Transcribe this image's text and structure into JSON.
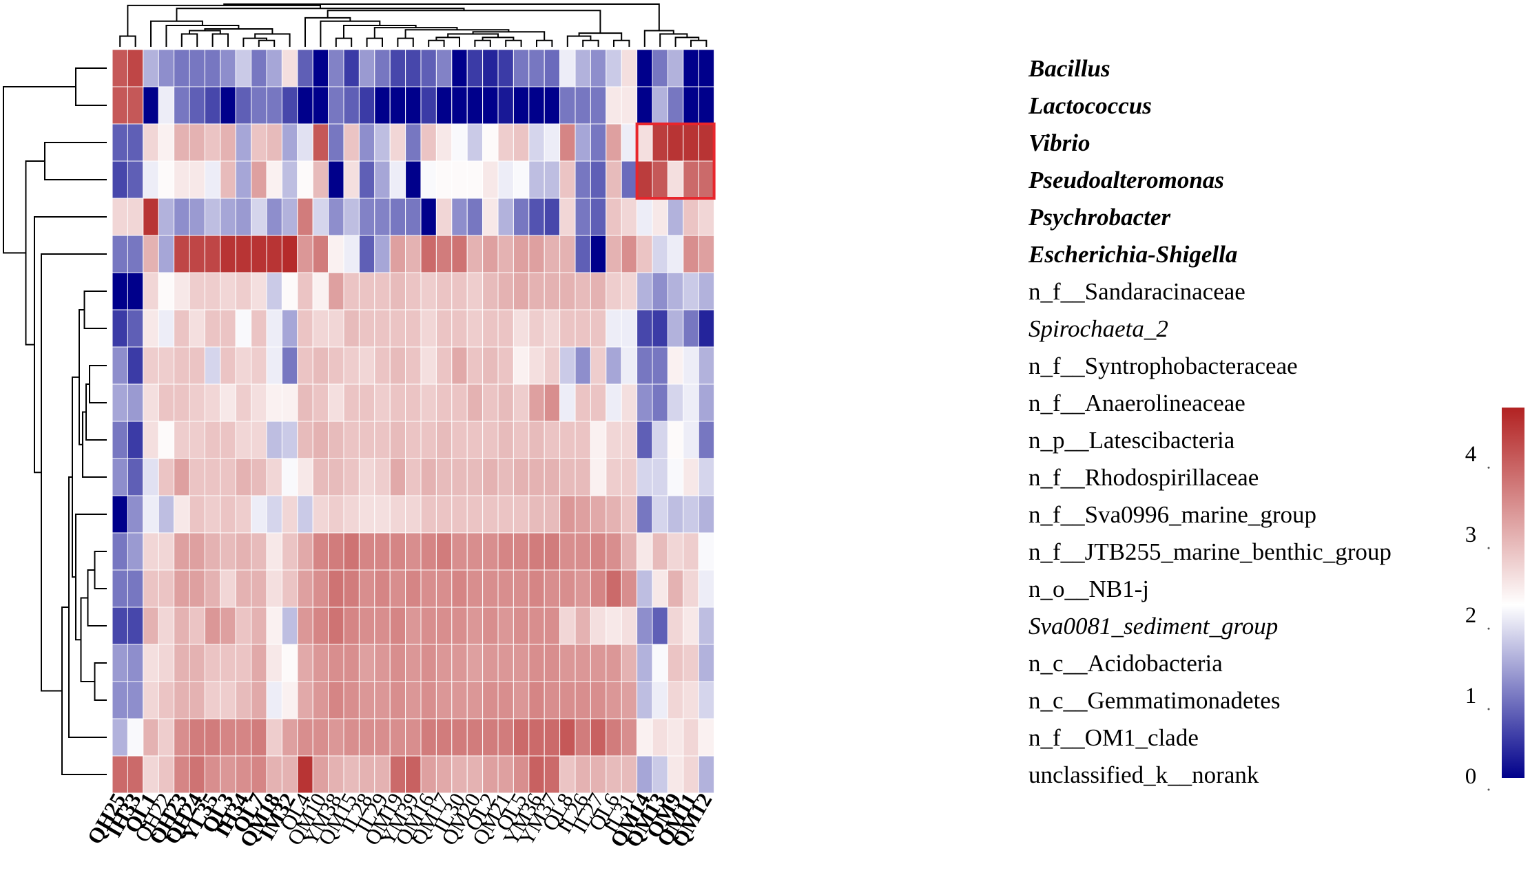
{
  "chart_data": {
    "type": "heatmap",
    "title": "",
    "rows": [
      {
        "label": "Bacillus",
        "style": "bold-italic"
      },
      {
        "label": "Lactococcus",
        "style": "bold-italic"
      },
      {
        "label": "Vibrio",
        "style": "bold-italic"
      },
      {
        "label": "Pseudoalteromonas",
        "style": "bold-italic"
      },
      {
        "label": "Psychrobacter",
        "style": "bold-italic"
      },
      {
        "label": "Escherichia-Shigella",
        "style": "bold-italic"
      },
      {
        "label": "n_f__Sandaracinaceae",
        "style": "normal"
      },
      {
        "label": "Spirochaeta_2",
        "style": "italic"
      },
      {
        "label": "n_f__Syntrophobacteraceae",
        "style": "normal"
      },
      {
        "label": "n_f__Anaerolineaceae",
        "style": "normal"
      },
      {
        "label": "n_p__Latescibacteria",
        "style": "normal"
      },
      {
        "label": "n_f__Rhodospirillaceae",
        "style": "normal"
      },
      {
        "label": "n_f__Sva0996_marine_group",
        "style": "normal"
      },
      {
        "label": "n_f__JTB255_marine_benthic_group",
        "style": "normal"
      },
      {
        "label": "n_o__NB1-j",
        "style": "normal"
      },
      {
        "label": "Sva0081_sediment_group",
        "style": "italic"
      },
      {
        "label": "n_c__Acidobacteria",
        "style": "normal"
      },
      {
        "label": "n_c__Gemmatimonadetes",
        "style": "normal"
      },
      {
        "label": "n_f__OM1_clade",
        "style": "normal"
      },
      {
        "label": "unclassified_k__norank",
        "style": "normal"
      }
    ],
    "columns": [
      {
        "label": "QH25",
        "bold": true
      },
      {
        "label": "IH33",
        "bold": true
      },
      {
        "label": "QL1",
        "bold": true
      },
      {
        "label": "QH22",
        "bold": false
      },
      {
        "label": "QH23",
        "bold": true
      },
      {
        "label": "QH24",
        "bold": true
      },
      {
        "label": "YL35",
        "bold": true
      },
      {
        "label": "QL3",
        "bold": true
      },
      {
        "label": "IH34",
        "bold": true
      },
      {
        "label": "QL7",
        "bold": true
      },
      {
        "label": "QM18",
        "bold": true
      },
      {
        "label": "IM32",
        "bold": true
      },
      {
        "label": "QL4",
        "bold": false
      },
      {
        "label": "QM10",
        "bold": false
      },
      {
        "label": "YM38",
        "bold": false
      },
      {
        "label": "QM15",
        "bold": false
      },
      {
        "label": "IL28",
        "bold": false
      },
      {
        "label": "IL29",
        "bold": false
      },
      {
        "label": "QM19",
        "bold": false
      },
      {
        "label": "YM39",
        "bold": false
      },
      {
        "label": "QM16",
        "bold": false
      },
      {
        "label": "QM17",
        "bold": false
      },
      {
        "label": "IL30",
        "bold": false
      },
      {
        "label": "QM20",
        "bold": false
      },
      {
        "label": "QL2",
        "bold": false
      },
      {
        "label": "QM21",
        "bold": false
      },
      {
        "label": "QL5",
        "bold": false
      },
      {
        "label": "YM36",
        "bold": false
      },
      {
        "label": "YM37",
        "bold": false
      },
      {
        "label": "QL8",
        "bold": false
      },
      {
        "label": "IL26",
        "bold": false
      },
      {
        "label": "IL27",
        "bold": false
      },
      {
        "label": "QL6",
        "bold": false
      },
      {
        "label": "IL31",
        "bold": false
      },
      {
        "label": "QM14",
        "bold": true
      },
      {
        "label": "QM13",
        "bold": true
      },
      {
        "label": "QM9",
        "bold": true
      },
      {
        "label": "QM11",
        "bold": true
      },
      {
        "label": "QM12",
        "bold": true
      }
    ],
    "values": [
      [
        4.0,
        4.2,
        1.5,
        1.2,
        1.0,
        1.0,
        1.0,
        1.2,
        1.7,
        1.0,
        1.4,
        2.5,
        0.8,
        0.0,
        1.1,
        0.5,
        1.3,
        1.0,
        0.6,
        0.6,
        0.8,
        1.1,
        0.0,
        0.5,
        0.3,
        0.5,
        1.0,
        1.0,
        0.9,
        2.0,
        1.5,
        1.2,
        1.7,
        2.5,
        0.0,
        1.0,
        1.5,
        0.0,
        0.0
      ],
      [
        4.0,
        4.0,
        0.0,
        2.0,
        1.0,
        0.8,
        0.6,
        0.0,
        0.8,
        1.0,
        1.0,
        0.6,
        0.0,
        0.0,
        1.0,
        0.8,
        0.5,
        0.0,
        0.0,
        0.0,
        0.5,
        0.0,
        0.0,
        0.0,
        0.0,
        0.2,
        0.0,
        0.0,
        0.0,
        1.0,
        1.0,
        1.0,
        2.4,
        2.4,
        0.0,
        1.5,
        1.0,
        0.0,
        0.0
      ],
      [
        0.8,
        0.8,
        2.6,
        2.3,
        3.0,
        3.0,
        2.8,
        3.0,
        1.4,
        2.8,
        2.9,
        1.4,
        1.9,
        4.0,
        1.0,
        2.8,
        1.2,
        1.6,
        2.6,
        1.0,
        2.8,
        2.4,
        2.1,
        1.7,
        2.2,
        2.7,
        2.8,
        1.8,
        2.0,
        3.5,
        1.4,
        1.0,
        3.2,
        2.0,
        2.5,
        4.3,
        4.4,
        4.4,
        4.4
      ],
      [
        0.6,
        0.8,
        2.0,
        2.2,
        2.4,
        2.4,
        2.0,
        2.9,
        1.4,
        3.2,
        2.3,
        1.6,
        2.2,
        2.9,
        0.0,
        2.5,
        0.8,
        1.4,
        2.0,
        0.0,
        2.1,
        2.2,
        2.2,
        2.2,
        2.4,
        2.0,
        2.1,
        1.6,
        1.6,
        2.8,
        1.0,
        0.8,
        2.9,
        0.9,
        4.3,
        4.0,
        2.5,
        3.8,
        3.8
      ],
      [
        2.6,
        2.6,
        4.4,
        1.5,
        1.2,
        1.3,
        1.6,
        1.4,
        1.3,
        1.8,
        1.2,
        1.5,
        3.6,
        1.8,
        1.2,
        1.6,
        1.1,
        1.1,
        1.0,
        1.0,
        0.0,
        2.6,
        1.2,
        1.0,
        2.4,
        1.5,
        1.0,
        0.7,
        0.6,
        2.6,
        1.0,
        0.8,
        2.8,
        2.6,
        2.0,
        2.4,
        1.5,
        2.8,
        2.6
      ],
      [
        1.0,
        1.0,
        3.0,
        1.4,
        4.2,
        4.2,
        4.2,
        4.4,
        4.4,
        4.4,
        4.4,
        4.5,
        3.3,
        3.6,
        2.3,
        2.0,
        0.8,
        1.4,
        3.2,
        3.0,
        3.8,
        3.6,
        3.7,
        3.0,
        3.2,
        3.0,
        3.2,
        3.2,
        3.0,
        3.0,
        0.8,
        0.0,
        3.0,
        3.4,
        2.8,
        1.8,
        2.0,
        3.4,
        3.2
      ],
      [
        0.0,
        0.0,
        2.6,
        2.2,
        2.4,
        2.7,
        2.7,
        2.6,
        2.7,
        2.5,
        1.7,
        2.2,
        2.8,
        2.3,
        3.2,
        2.8,
        2.8,
        2.8,
        2.9,
        2.8,
        2.7,
        2.8,
        2.8,
        2.7,
        2.9,
        3.0,
        3.1,
        3.0,
        3.0,
        3.0,
        2.9,
        3.0,
        2.7,
        2.6,
        1.5,
        1.2,
        1.5,
        1.7,
        1.5
      ],
      [
        0.5,
        0.8,
        2.4,
        2.0,
        2.8,
        2.5,
        2.8,
        2.8,
        2.1,
        2.8,
        2.0,
        1.4,
        2.8,
        2.6,
        2.6,
        2.9,
        2.8,
        2.8,
        2.8,
        2.8,
        2.6,
        2.8,
        2.8,
        2.7,
        2.8,
        2.8,
        2.5,
        2.7,
        2.6,
        2.8,
        2.8,
        2.8,
        2.0,
        2.0,
        0.6,
        0.5,
        1.5,
        1.0,
        0.3
      ],
      [
        1.2,
        0.5,
        2.7,
        2.7,
        2.8,
        2.8,
        1.8,
        2.8,
        2.6,
        2.7,
        2.0,
        1.0,
        2.8,
        2.9,
        2.8,
        2.7,
        2.6,
        2.8,
        2.9,
        2.8,
        2.5,
        2.8,
        3.1,
        2.8,
        2.9,
        2.8,
        2.3,
        2.5,
        2.7,
        1.7,
        1.2,
        2.7,
        1.4,
        2.0,
        1.0,
        1.0,
        2.3,
        2.0,
        1.5
      ],
      [
        1.4,
        1.3,
        2.5,
        2.8,
        2.8,
        2.7,
        2.6,
        2.4,
        2.7,
        2.5,
        2.3,
        2.3,
        2.9,
        2.8,
        2.5,
        2.8,
        2.8,
        2.7,
        2.8,
        2.8,
        2.7,
        2.8,
        2.8,
        3.0,
        2.8,
        2.9,
        2.7,
        3.2,
        3.4,
        2.0,
        2.8,
        2.8,
        2.0,
        2.5,
        1.2,
        1.0,
        1.8,
        2.0,
        1.4
      ],
      [
        1.0,
        0.5,
        2.5,
        2.2,
        2.7,
        2.7,
        2.8,
        2.8,
        2.6,
        2.6,
        1.6,
        1.7,
        2.9,
        3.0,
        2.9,
        2.8,
        2.8,
        2.8,
        2.9,
        2.8,
        2.8,
        2.9,
        2.8,
        2.8,
        2.8,
        2.9,
        2.8,
        2.9,
        2.8,
        2.8,
        2.8,
        2.3,
        2.6,
        2.6,
        0.8,
        1.8,
        2.2,
        2.0,
        1.0
      ],
      [
        1.2,
        0.8,
        1.9,
        2.8,
        3.2,
        2.8,
        2.8,
        2.8,
        3.0,
        2.9,
        2.6,
        2.1,
        2.4,
        2.9,
        2.9,
        2.8,
        2.6,
        2.7,
        3.1,
        2.8,
        3.0,
        2.9,
        2.9,
        2.9,
        3.0,
        2.9,
        3.0,
        3.0,
        3.0,
        2.9,
        2.9,
        2.3,
        2.7,
        2.7,
        1.8,
        1.8,
        2.1,
        2.4,
        1.8
      ],
      [
        0.0,
        1.2,
        2.0,
        1.6,
        2.4,
        2.8,
        2.7,
        2.8,
        2.7,
        2.0,
        1.8,
        2.6,
        1.7,
        2.6,
        2.7,
        2.6,
        2.5,
        2.5,
        2.6,
        2.6,
        2.8,
        2.8,
        2.8,
        2.8,
        2.8,
        2.8,
        2.8,
        2.9,
        2.9,
        3.3,
        3.2,
        3.1,
        3.0,
        2.8,
        1.0,
        1.8,
        1.6,
        1.7,
        1.5
      ],
      [
        1.0,
        1.3,
        2.6,
        2.6,
        3.2,
        3.2,
        3.0,
        2.9,
        3.0,
        2.9,
        2.4,
        2.8,
        3.1,
        3.5,
        3.6,
        3.7,
        3.5,
        3.5,
        3.5,
        3.4,
        3.5,
        3.6,
        3.4,
        3.4,
        3.4,
        3.5,
        3.5,
        3.6,
        3.6,
        3.4,
        3.4,
        3.5,
        3.4,
        3.0,
        2.4,
        2.9,
        2.6,
        2.7,
        2.1
      ],
      [
        1.0,
        1.0,
        2.8,
        2.8,
        3.2,
        3.2,
        3.0,
        2.6,
        3.0,
        3.0,
        2.5,
        2.8,
        3.2,
        3.4,
        3.7,
        3.6,
        3.4,
        3.5,
        3.4,
        3.5,
        3.4,
        3.4,
        3.5,
        3.4,
        3.4,
        3.4,
        3.4,
        3.5,
        3.4,
        3.4,
        3.3,
        3.5,
        3.8,
        3.4,
        1.6,
        2.4,
        3.0,
        2.6,
        2.0
      ],
      [
        0.6,
        0.6,
        3.0,
        2.6,
        3.0,
        2.8,
        3.3,
        3.2,
        2.8,
        3.0,
        2.3,
        1.6,
        3.3,
        3.5,
        3.7,
        3.5,
        3.4,
        3.4,
        3.5,
        3.3,
        3.4,
        3.4,
        3.4,
        3.3,
        3.4,
        3.3,
        3.4,
        3.4,
        3.4,
        2.6,
        3.0,
        2.5,
        2.4,
        2.5,
        1.2,
        0.8,
        2.6,
        2.4,
        1.6
      ],
      [
        1.3,
        1.2,
        2.5,
        2.6,
        3.0,
        3.0,
        2.8,
        2.8,
        2.8,
        3.1,
        2.4,
        2.2,
        3.1,
        3.3,
        3.4,
        3.4,
        3.2,
        3.3,
        3.4,
        3.3,
        3.4,
        3.3,
        3.3,
        3.2,
        3.3,
        3.3,
        3.3,
        3.4,
        3.4,
        3.3,
        3.3,
        3.3,
        3.3,
        3.0,
        1.5,
        2.1,
        2.8,
        2.7,
        1.5
      ],
      [
        1.2,
        1.2,
        2.6,
        2.8,
        3.0,
        3.0,
        2.7,
        2.7,
        2.9,
        3.1,
        2.0,
        2.3,
        3.1,
        3.3,
        3.5,
        3.4,
        3.3,
        3.3,
        3.4,
        3.3,
        3.4,
        3.3,
        3.3,
        3.3,
        3.4,
        3.4,
        3.3,
        3.5,
        3.4,
        3.4,
        3.4,
        3.4,
        3.3,
        3.2,
        1.6,
        2.0,
        2.6,
        2.5,
        1.8
      ],
      [
        1.5,
        2.1,
        3.0,
        2.7,
        3.4,
        3.6,
        3.6,
        3.5,
        3.5,
        3.6,
        2.7,
        3.2,
        3.4,
        3.4,
        3.3,
        3.4,
        3.4,
        3.4,
        3.4,
        3.4,
        3.6,
        3.6,
        3.6,
        3.6,
        3.6,
        3.6,
        3.8,
        3.8,
        3.8,
        4.0,
        3.6,
        3.9,
        3.6,
        3.4,
        2.3,
        2.5,
        2.4,
        2.6,
        2.3
      ],
      [
        3.8,
        3.8,
        2.6,
        2.8,
        3.5,
        3.7,
        3.4,
        3.3,
        3.4,
        3.5,
        3.0,
        3.0,
        4.4,
        3.2,
        3.0,
        2.9,
        3.0,
        3.0,
        3.8,
        3.9,
        3.2,
        3.1,
        3.0,
        3.0,
        3.2,
        3.2,
        3.4,
        3.9,
        3.8,
        2.8,
        3.0,
        3.0,
        2.9,
        2.9,
        1.4,
        1.7,
        2.4,
        2.6,
        1.5
      ]
    ],
    "colorbar": {
      "min": 0,
      "max": 4.6,
      "colors": [
        "#00008b",
        "#ffffff",
        "#b22222"
      ],
      "mid": 2.15,
      "ticks": [
        "0",
        "1",
        "2",
        "3",
        "4"
      ],
      "tick_values": [
        0,
        1,
        2,
        3,
        4
      ]
    },
    "highlight": {
      "rows": [
        "Vibrio",
        "Pseudoalteromonas"
      ],
      "columns": [
        "QM14",
        "QM13",
        "QM9",
        "QM11",
        "QM12"
      ],
      "color": "#e8262c"
    },
    "row_dendrogram": [
      {
        "a": 0,
        "b": 1,
        "h": 0.9
      },
      {
        "a": 2,
        "b": 3,
        "h": 1.8
      },
      {
        "a": 16,
        "b": 17,
        "h": 0.35
      },
      {
        "a": 13,
        "b": 14,
        "h": 0.35
      },
      {
        "a": 23,
        "b": 15,
        "h": 0.55
      },
      {
        "a": 24,
        "b": 22,
        "h": 0.75
      },
      {
        "a": 12,
        "b": 25,
        "h": 0.9
      },
      {
        "a": 8,
        "b": 9,
        "h": 0.5
      },
      {
        "a": 27,
        "b": 10,
        "h": 0.6
      },
      {
        "a": 28,
        "b": 11,
        "h": 0.7
      },
      {
        "a": 6,
        "b": 7,
        "h": 0.65
      },
      {
        "a": 30,
        "b": 29,
        "h": 0.8
      },
      {
        "a": 31,
        "b": 26,
        "h": 1.0
      },
      {
        "a": 32,
        "b": 18,
        "h": 1.1
      },
      {
        "a": 33,
        "b": 19,
        "h": 1.3
      },
      {
        "a": 5,
        "b": 34,
        "h": 1.9
      },
      {
        "a": 4,
        "b": 35,
        "h": 2.1
      },
      {
        "a": 21,
        "b": 36,
        "h": 2.35
      },
      {
        "a": 20,
        "b": 37,
        "h": 3.0
      }
    ],
    "col_dendrogram": [
      {
        "a": 0,
        "b": 1,
        "h": 0.25
      },
      {
        "a": 4,
        "b": 5,
        "h": 0.3
      },
      {
        "a": 6,
        "b": 7,
        "h": 0.3
      },
      {
        "a": 9,
        "b": 10,
        "h": 0.15
      },
      {
        "a": 8,
        "b": 42,
        "h": 0.2
      },
      {
        "a": 43,
        "b": 11,
        "h": 0.3
      },
      {
        "a": 40,
        "b": 41,
        "h": 0.38
      },
      {
        "a": 45,
        "b": 44,
        "h": 0.42
      },
      {
        "a": 3,
        "b": 46,
        "h": 0.5
      },
      {
        "a": 2,
        "b": 47,
        "h": 0.6
      },
      {
        "a": 14,
        "b": 15,
        "h": 0.2
      },
      {
        "a": 16,
        "b": 17,
        "h": 0.2
      },
      {
        "a": 18,
        "b": 19,
        "h": 0.2
      },
      {
        "a": 20,
        "b": 21,
        "h": 0.15
      },
      {
        "a": 52,
        "b": 22,
        "h": 0.22
      },
      {
        "a": 23,
        "b": 24,
        "h": 0.15
      },
      {
        "a": 25,
        "b": 26,
        "h": 0.15
      },
      {
        "a": 54,
        "b": 55,
        "h": 0.22
      },
      {
        "a": 53,
        "b": 56,
        "h": 0.3
      },
      {
        "a": 27,
        "b": 28,
        "h": 0.15
      },
      {
        "a": 57,
        "b": 58,
        "h": 0.35
      },
      {
        "a": 51,
        "b": 59,
        "h": 0.4
      },
      {
        "a": 50,
        "b": 60,
        "h": 0.45
      },
      {
        "a": 49,
        "b": 61,
        "h": 0.5
      },
      {
        "a": 13,
        "b": 62,
        "h": 0.6
      },
      {
        "a": 12,
        "b": 63,
        "h": 0.68
      },
      {
        "a": 30,
        "b": 31,
        "h": 0.15
      },
      {
        "a": 29,
        "b": 65,
        "h": 0.25
      },
      {
        "a": 32,
        "b": 33,
        "h": 0.15
      },
      {
        "a": 66,
        "b": 67,
        "h": 0.32
      },
      {
        "a": 64,
        "b": 68,
        "h": 0.85
      },
      {
        "a": 48,
        "b": 69,
        "h": 0.9
      },
      {
        "a": 37,
        "b": 38,
        "h": 0.15
      },
      {
        "a": 36,
        "b": 71,
        "h": 0.22
      },
      {
        "a": 35,
        "b": 72,
        "h": 0.3
      },
      {
        "a": 34,
        "b": 73,
        "h": 0.38
      },
      {
        "a": 39,
        "b": 70,
        "h": 0.97
      },
      {
        "a": 75,
        "b": 74,
        "h": 1.0
      }
    ]
  }
}
